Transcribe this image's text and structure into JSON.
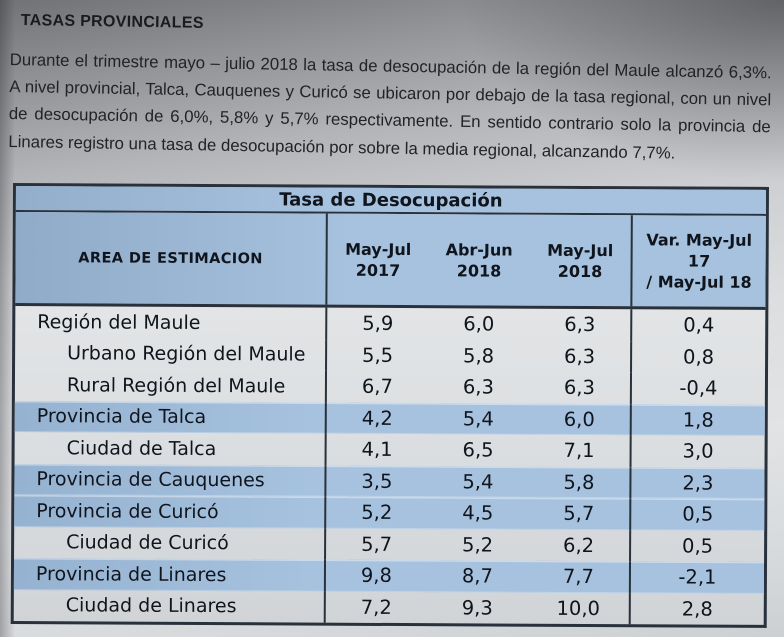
{
  "document": {
    "heading": "TASAS PROVINCIALES",
    "paragraph": "Durante el trimestre mayo – julio 2018 la tasa de desocupación de la región del Maule alcanzó 6,3%. A nivel provincial, Talca, Cauquenes y Curicó se ubicaron por debajo de la tasa regional, con un nivel de desocupación de 6,0%, 5,8% y 5,7% respectivamente. En sentido contrario solo la provincia de Linares registro una tasa de desocupación por sobre la media regional, alcanzando 7,7%."
  },
  "table": {
    "title": "Tasa de Desocupación",
    "header": {
      "area": "AREA DE ESTIMACION",
      "periods": [
        "May-Jul\n2017",
        "Abr-Jun\n2018",
        "May-Jul\n2018"
      ],
      "variation": "Var. May-Jul 17\n/ May-Jul 18"
    },
    "rows": [
      {
        "area": "Región del Maule",
        "indent": false,
        "highlight": false,
        "values": [
          "5,9",
          "6,0",
          "6,3",
          "0,4"
        ]
      },
      {
        "area": "Urbano Región del Maule",
        "indent": true,
        "highlight": false,
        "values": [
          "5,5",
          "5,8",
          "6,3",
          "0,8"
        ]
      },
      {
        "area": "Rural Región del Maule",
        "indent": true,
        "highlight": false,
        "values": [
          "6,7",
          "6,3",
          "6,3",
          "-0,4"
        ]
      },
      {
        "area": "Provincia de Talca",
        "indent": false,
        "highlight": true,
        "values": [
          "4,2",
          "5,4",
          "6,0",
          "1,8"
        ]
      },
      {
        "area": "Ciudad de Talca",
        "indent": true,
        "highlight": false,
        "values": [
          "4,1",
          "6,5",
          "7,1",
          "3,0"
        ]
      },
      {
        "area": "Provincia de Cauquenes",
        "indent": false,
        "highlight": true,
        "values": [
          "3,5",
          "5,4",
          "5,8",
          "2,3"
        ]
      },
      {
        "area": "Provincia de Curicó",
        "indent": false,
        "highlight": true,
        "values": [
          "5,2",
          "4,5",
          "5,7",
          "0,5"
        ]
      },
      {
        "area": "Ciudad de Curicó",
        "indent": true,
        "highlight": false,
        "values": [
          "5,7",
          "5,2",
          "6,2",
          "0,5"
        ]
      },
      {
        "area": "Provincia de Linares",
        "indent": false,
        "highlight": true,
        "values": [
          "9,8",
          "8,7",
          "7,7",
          "-2,1"
        ]
      },
      {
        "area": "Ciudad de Linares",
        "indent": true,
        "highlight": false,
        "values": [
          "7,2",
          "9,3",
          "10,0",
          "2,8"
        ]
      }
    ],
    "colors": {
      "header_fill": "#a6c2de",
      "highlight_fill": "#a6c2de",
      "border": "#28313c"
    }
  }
}
